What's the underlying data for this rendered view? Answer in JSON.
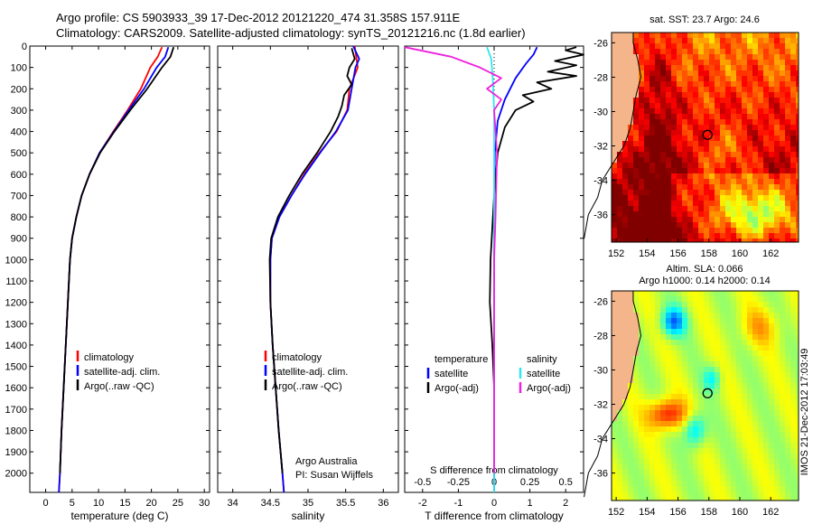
{
  "header": {
    "line1": "Argo profile: CS 5903933_39 17-Dec-2012 20121220_474 31.358S 157.911E",
    "line2": "Climatology: CARS2009. Satellite-adjusted climatology: synTS_20121216.nc (1.8d earlier)"
  },
  "colors": {
    "red": "#ff0000",
    "blue": "#0000ff",
    "black": "#000000",
    "cyan": "#33e6ee",
    "magenta": "#ee22dd"
  },
  "chart_data": [
    {
      "type": "line",
      "name": "temperature-profile",
      "xlabel": "temperature (deg C)",
      "ylabel": "",
      "xlim": [
        -3,
        31
      ],
      "ylim": [
        2090,
        0
      ],
      "xticks": [
        0,
        5,
        10,
        15,
        20,
        25,
        30
      ],
      "yticks": [
        0,
        100,
        200,
        300,
        400,
        500,
        600,
        700,
        800,
        900,
        1000,
        1100,
        1200,
        1300,
        1400,
        1500,
        1600,
        1700,
        1800,
        1900,
        2000
      ],
      "legend": [
        "climatology",
        "satellite-adj. clim.",
        "Argo(..raw -QC)"
      ],
      "series": [
        {
          "name": "climatology",
          "color": "red",
          "points": [
            [
              22.0,
              5
            ],
            [
              21.2,
              50
            ],
            [
              19.8,
              100
            ],
            [
              18.0,
              200
            ],
            [
              15.5,
              300
            ],
            [
              12.8,
              400
            ],
            [
              10.2,
              500
            ],
            [
              8.3,
              600
            ],
            [
              6.8,
              700
            ],
            [
              5.8,
              800
            ],
            [
              5.0,
              900
            ],
            [
              4.6,
              1000
            ],
            [
              4.2,
              1200
            ],
            [
              3.8,
              1400
            ],
            [
              3.4,
              1600
            ],
            [
              3.0,
              1800
            ],
            [
              2.7,
              2000
            ],
            [
              2.5,
              2090
            ]
          ]
        },
        {
          "name": "satellite-adj. clim.",
          "color": "blue",
          "points": [
            [
              23.2,
              5
            ],
            [
              22.6,
              50
            ],
            [
              21.0,
              100
            ],
            [
              18.6,
              200
            ],
            [
              15.7,
              300
            ],
            [
              12.9,
              400
            ],
            [
              10.2,
              500
            ],
            [
              8.3,
              600
            ],
            [
              6.8,
              700
            ],
            [
              5.8,
              800
            ],
            [
              5.0,
              900
            ],
            [
              4.6,
              1000
            ],
            [
              4.2,
              1200
            ],
            [
              3.8,
              1400
            ],
            [
              3.4,
              1600
            ],
            [
              3.0,
              1800
            ],
            [
              2.7,
              2000
            ],
            [
              2.5,
              2090
            ]
          ]
        },
        {
          "name": "Argo(..raw -QC)",
          "color": "black",
          "points": [
            [
              24.2,
              5
            ],
            [
              23.6,
              50
            ],
            [
              22.0,
              100
            ],
            [
              19.2,
              200
            ],
            [
              16.0,
              300
            ],
            [
              13.0,
              400
            ],
            [
              10.3,
              500
            ],
            [
              8.3,
              600
            ],
            [
              6.8,
              700
            ],
            [
              5.8,
              800
            ],
            [
              5.0,
              900
            ],
            [
              4.6,
              1000
            ],
            [
              4.2,
              1200
            ],
            [
              3.8,
              1400
            ],
            [
              3.4,
              1600
            ],
            [
              3.0,
              1800
            ],
            [
              2.7,
              2000
            ]
          ]
        }
      ]
    },
    {
      "type": "line",
      "name": "salinity-profile",
      "xlabel": "salinity",
      "xlim": [
        33.8,
        36.2
      ],
      "ylim": [
        2090,
        0
      ],
      "xticks": [
        34,
        34.5,
        35,
        35.5,
        36
      ],
      "legend": [
        "climatology",
        "satellite-adj. clim.",
        "Argo(..raw -QC)"
      ],
      "annotation": [
        "Argo Australia",
        "PI: Susan Wijffels"
      ],
      "series": [
        {
          "name": "climatology",
          "color": "red",
          "points": [
            [
              35.62,
              0
            ],
            [
              35.66,
              100
            ],
            [
              35.55,
              200
            ],
            [
              35.52,
              300
            ],
            [
              35.38,
              400
            ],
            [
              35.15,
              500
            ],
            [
              34.95,
              600
            ],
            [
              34.78,
              700
            ],
            [
              34.62,
              800
            ],
            [
              34.52,
              900
            ],
            [
              34.5,
              1000
            ],
            [
              34.5,
              1200
            ],
            [
              34.53,
              1400
            ],
            [
              34.57,
              1600
            ],
            [
              34.61,
              1800
            ],
            [
              34.66,
              2000
            ],
            [
              34.68,
              2090
            ]
          ]
        },
        {
          "name": "satellite-adj. clim.",
          "color": "blue",
          "points": [
            [
              35.6,
              0
            ],
            [
              35.68,
              60
            ],
            [
              35.63,
              100
            ],
            [
              35.58,
              200
            ],
            [
              35.53,
              300
            ],
            [
              35.37,
              400
            ],
            [
              35.16,
              500
            ],
            [
              34.96,
              600
            ],
            [
              34.78,
              700
            ],
            [
              34.62,
              800
            ],
            [
              34.52,
              900
            ],
            [
              34.5,
              1000
            ],
            [
              34.5,
              1200
            ],
            [
              34.53,
              1400
            ],
            [
              34.57,
              1600
            ],
            [
              34.61,
              1800
            ],
            [
              34.66,
              2000
            ],
            [
              34.68,
              2090
            ]
          ]
        },
        {
          "name": "Argo(..raw -QC)",
          "color": "black",
          "points": [
            [
              35.58,
              10
            ],
            [
              35.62,
              60
            ],
            [
              35.55,
              100
            ],
            [
              35.52,
              140
            ],
            [
              35.58,
              180
            ],
            [
              35.48,
              230
            ],
            [
              35.45,
              280
            ],
            [
              35.4,
              330
            ],
            [
              35.3,
              400
            ],
            [
              35.12,
              500
            ],
            [
              34.92,
              600
            ],
            [
              34.75,
              700
            ],
            [
              34.6,
              800
            ],
            [
              34.51,
              900
            ],
            [
              34.49,
              1000
            ],
            [
              34.5,
              1200
            ],
            [
              34.53,
              1400
            ],
            [
              34.57,
              1600
            ],
            [
              34.61,
              1800
            ],
            [
              34.66,
              2000
            ]
          ]
        }
      ]
    },
    {
      "type": "line",
      "name": "difference-profile",
      "xlabel": "T difference from climatology",
      "top_axis_label": "S difference from climatology",
      "xlim": [
        -2.5,
        2.5
      ],
      "ylim": [
        2090,
        0
      ],
      "xticks": [
        -2,
        -1,
        0,
        1,
        2
      ],
      "s_xticks": [
        "-0.5",
        "-0.25",
        "0",
        "0.25",
        "0.5"
      ],
      "legend_t": [
        "temperature",
        "satellite",
        "Argo(-adj)"
      ],
      "legend_s": [
        "salinity",
        "satellite",
        "Argo(-adj)"
      ],
      "series": [
        {
          "name": "T satellite",
          "color": "blue",
          "points": [
            [
              1.2,
              5
            ],
            [
              1.1,
              40
            ],
            [
              0.9,
              80
            ],
            [
              0.6,
              150
            ],
            [
              0.3,
              250
            ],
            [
              0.1,
              350
            ],
            [
              0.02,
              500
            ],
            [
              0,
              800
            ],
            [
              0,
              2090
            ]
          ]
        },
        {
          "name": "T Argo(-adj)",
          "color": "black",
          "points": [
            [
              2.3,
              5
            ],
            [
              2.0,
              20
            ],
            [
              2.5,
              40
            ],
            [
              1.7,
              70
            ],
            [
              2.3,
              90
            ],
            [
              1.5,
              120
            ],
            [
              2.3,
              140
            ],
            [
              1.2,
              170
            ],
            [
              1.6,
              200
            ],
            [
              0.8,
              230
            ],
            [
              1.1,
              260
            ],
            [
              0.6,
              300
            ],
            [
              0.3,
              380
            ],
            [
              0.1,
              500
            ],
            [
              0.0,
              700
            ],
            [
              -0.1,
              1000
            ],
            [
              -0.12,
              1200
            ],
            [
              -0.05,
              1400
            ],
            [
              0,
              1600
            ],
            [
              0,
              2000
            ]
          ]
        },
        {
          "name": "S satellite",
          "color": "cyan",
          "points": [
            [
              -0.05,
              5
            ],
            [
              -0.02,
              60
            ],
            [
              -0.01,
              150
            ],
            [
              0,
              300
            ],
            [
              0,
              2090
            ]
          ]
        },
        {
          "name": "S Argo(-adj)",
          "color": "magenta",
          "points": [
            [
              -0.8,
              5
            ],
            [
              -0.3,
              50
            ],
            [
              -0.1,
              100
            ],
            [
              0.05,
              150
            ],
            [
              -0.05,
              200
            ],
            [
              0.05,
              250
            ],
            [
              0.0,
              300
            ],
            [
              0.02,
              500
            ],
            [
              0.01,
              800
            ],
            [
              0.0,
              1000
            ],
            [
              0.0,
              2000
            ]
          ]
        }
      ]
    },
    {
      "type": "heatmap",
      "name": "sst-map",
      "title": "sat. SST: 23.7 Argo: 24.6",
      "xticks": [
        152,
        154,
        156,
        158,
        160,
        162
      ],
      "yticks": [
        -26,
        -28,
        -30,
        -32,
        -34,
        -36
      ],
      "marker": [
        157.911,
        -31.358
      ]
    },
    {
      "type": "heatmap",
      "name": "sla-map",
      "title_lines": [
        "Altim. SLA: 0.066",
        "Argo h1000: 0.14 h2000: 0.14"
      ],
      "xticks": [
        152,
        154,
        156,
        158,
        160,
        162
      ],
      "yticks": [
        -26,
        -28,
        -30,
        -32,
        -34,
        -36
      ],
      "marker": [
        157.911,
        -31.358
      ]
    }
  ],
  "side_label": "IMOS 21-Dec-2012 17:03:49"
}
